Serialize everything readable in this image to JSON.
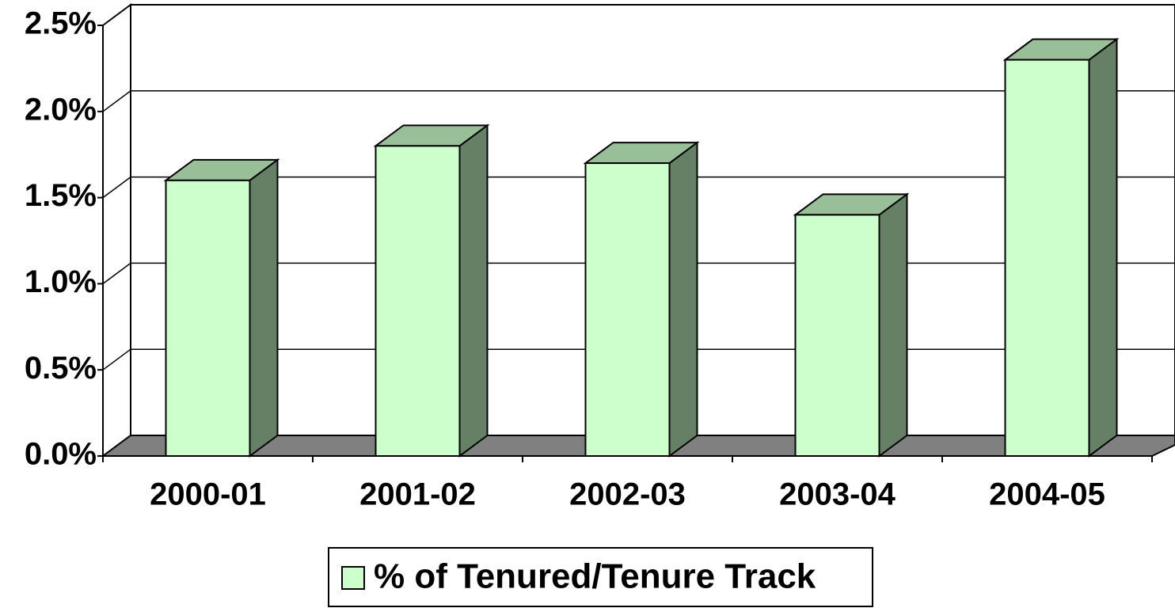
{
  "chart_data": {
    "type": "bar3d",
    "categories": [
      "2000-01",
      "2001-02",
      "2002-03",
      "2003-04",
      "2004-05"
    ],
    "series": [
      {
        "name": "% of Tenured/Tenure Track",
        "color": "#ccffcc",
        "values": [
          1.6,
          1.8,
          1.7,
          1.4,
          2.3
        ]
      }
    ],
    "ylim": [
      0,
      2.5
    ],
    "yticks": [
      {
        "value": 0,
        "label": "0.0%"
      },
      {
        "value": 0.5,
        "label": "0.5%"
      },
      {
        "value": 1,
        "label": "1.0%"
      },
      {
        "value": 1.5,
        "label": "1.5%"
      },
      {
        "value": 2,
        "label": "2.0%"
      },
      {
        "value": 2.5,
        "label": "2.5%"
      }
    ],
    "grid": true,
    "legend": "bottom"
  }
}
